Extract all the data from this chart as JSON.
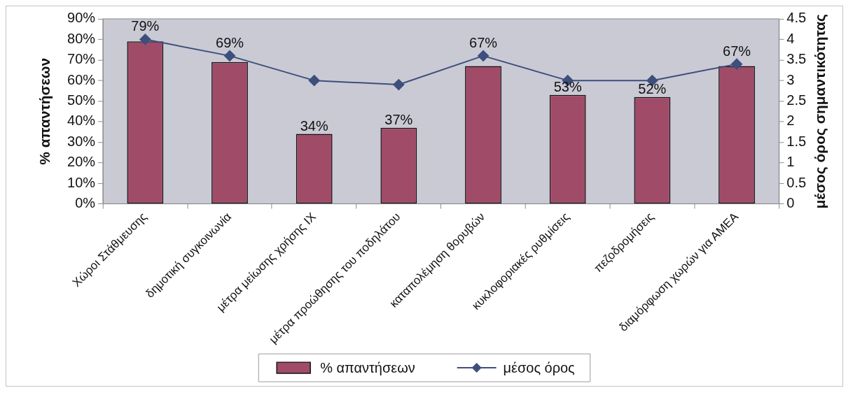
{
  "chart_data": {
    "type": "bar",
    "categories": [
      "Χώροι Στάθμευσης",
      "δημοτική συγκοινωνία",
      "μέτρα μείωσης χρήσης ΙΧ",
      "μέτρα προώθησης του ποδηλάτου",
      "καταπολέμηση θορυβών",
      "κυκλοφοριακές ρυθμίσεις",
      "πεζοδρομήσεις",
      "διαμόρφωση χωρών για ΑΜΕΑ"
    ],
    "series": [
      {
        "name": "% απαντήσεων",
        "color": "#a04c68",
        "values": [
          79,
          69,
          34,
          37,
          67,
          53,
          52,
          67
        ],
        "value_labels": [
          "79%",
          "69%",
          "34%",
          "37%",
          "67%",
          "53%",
          "52%",
          "67%"
        ]
      },
      {
        "name": "μέσος όρος",
        "type": "line",
        "axis": "y2",
        "color": "#3d4f7c",
        "values": [
          4.0,
          3.6,
          3.0,
          2.9,
          3.6,
          3.0,
          3.0,
          3.4
        ]
      }
    ],
    "ylabel": "% απαντήσεων",
    "y2label": "μέσος όρος σημαντικότητας",
    "ylim": [
      0,
      90
    ],
    "yticks": [
      {
        "value": 0,
        "label": "0%"
      },
      {
        "value": 10,
        "label": "10%"
      },
      {
        "value": 20,
        "label": "20%"
      },
      {
        "value": 30,
        "label": "30%"
      },
      {
        "value": 40,
        "label": "40%"
      },
      {
        "value": 50,
        "label": "50%"
      },
      {
        "value": 60,
        "label": "60%"
      },
      {
        "value": 70,
        "label": "70%"
      },
      {
        "value": 80,
        "label": "80%"
      },
      {
        "value": 90,
        "label": "90%"
      }
    ],
    "y2lim": [
      0,
      4.5
    ],
    "y2ticks": [
      0,
      0.5,
      1,
      1.5,
      2,
      2.5,
      3,
      3.5,
      4,
      4.5
    ],
    "marker": "diamond",
    "legend": "bottom"
  }
}
